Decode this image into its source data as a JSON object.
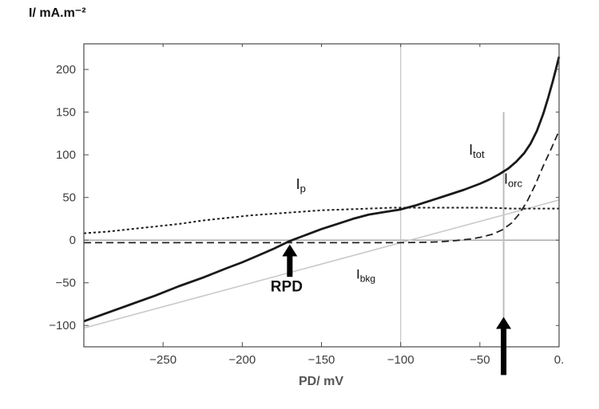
{
  "chart_data": {
    "type": "line",
    "title": "",
    "ylabel": "I/ mA.m⁻²",
    "xlabel": "PD/ mV",
    "xlim": [
      -300,
      0
    ],
    "ylim": [
      -125,
      230
    ],
    "grid": false,
    "legend": "none (inline curve labels)",
    "x_ticks": [
      {
        "v": -250,
        "label": "−250"
      },
      {
        "v": -200,
        "label": "−200"
      },
      {
        "v": -150,
        "label": "−150"
      },
      {
        "v": -100,
        "label": "−100"
      },
      {
        "v": -50,
        "label": "−50"
      },
      {
        "v": 0,
        "label": "0."
      }
    ],
    "y_ticks": [
      {
        "v": -100,
        "label": "−100"
      },
      {
        "v": -50,
        "label": "−50"
      },
      {
        "v": 0,
        "label": "0"
      },
      {
        "v": 50,
        "label": "50"
      },
      {
        "v": 100,
        "label": "100"
      },
      {
        "v": 150,
        "label": "150"
      },
      {
        "v": 200,
        "label": "200"
      }
    ],
    "series": [
      {
        "name": "I_bkg",
        "line_style": "solid",
        "dash": "none",
        "color": "#c9c9c9",
        "width": 1.6,
        "points": [
          [
            -300,
            -103
          ],
          [
            0,
            47
          ]
        ]
      },
      {
        "name": "I_p",
        "line_style": "dotted",
        "dash": "3,3",
        "color": "#1a1a1a",
        "width": 2,
        "points": [
          [
            -300,
            8
          ],
          [
            -285,
            10
          ],
          [
            -270,
            13
          ],
          [
            -255,
            16
          ],
          [
            -240,
            19
          ],
          [
            -225,
            23
          ],
          [
            -210,
            26
          ],
          [
            -195,
            29
          ],
          [
            -180,
            31
          ],
          [
            -165,
            33
          ],
          [
            -150,
            35
          ],
          [
            -135,
            36
          ],
          [
            -120,
            37
          ],
          [
            -105,
            38
          ],
          [
            -90,
            38
          ],
          [
            -75,
            38
          ],
          [
            -60,
            38
          ],
          [
            -45,
            38
          ],
          [
            -30,
            37
          ],
          [
            -15,
            37
          ],
          [
            0,
            37
          ]
        ]
      },
      {
        "name": "I_orc",
        "line_style": "dashed",
        "dash": "9,5",
        "color": "#222222",
        "width": 1.8,
        "points": [
          [
            -300,
            -3
          ],
          [
            -260,
            -3
          ],
          [
            -220,
            -3
          ],
          [
            -180,
            -3
          ],
          [
            -150,
            -3
          ],
          [
            -120,
            -3
          ],
          [
            -100,
            -3
          ],
          [
            -85,
            -2.5
          ],
          [
            -75,
            -2
          ],
          [
            -65,
            -0.5
          ],
          [
            -55,
            1.5
          ],
          [
            -48,
            4
          ],
          [
            -42,
            7
          ],
          [
            -36,
            12
          ],
          [
            -30,
            20
          ],
          [
            -25,
            31
          ],
          [
            -20,
            46
          ],
          [
            -15,
            65
          ],
          [
            -10,
            87
          ],
          [
            -5,
            107
          ],
          [
            0,
            128
          ]
        ]
      },
      {
        "name": "I_tot",
        "line_style": "solid",
        "dash": "none",
        "color": "#1a1a1a",
        "width": 2.8,
        "points": [
          [
            -300,
            -95
          ],
          [
            -285,
            -85
          ],
          [
            -270,
            -75
          ],
          [
            -255,
            -65
          ],
          [
            -240,
            -54
          ],
          [
            -225,
            -44
          ],
          [
            -210,
            -33
          ],
          [
            -200,
            -26
          ],
          [
            -190,
            -18
          ],
          [
            -180,
            -10
          ],
          [
            -170,
            -1
          ],
          [
            -160,
            6
          ],
          [
            -150,
            13
          ],
          [
            -140,
            19
          ],
          [
            -130,
            25
          ],
          [
            -120,
            30
          ],
          [
            -110,
            33
          ],
          [
            -100,
            36
          ],
          [
            -90,
            41
          ],
          [
            -80,
            47
          ],
          [
            -70,
            53
          ],
          [
            -60,
            59
          ],
          [
            -50,
            66
          ],
          [
            -44,
            71
          ],
          [
            -38,
            77
          ],
          [
            -32,
            84
          ],
          [
            -27,
            92
          ],
          [
            -22,
            102
          ],
          [
            -18,
            113
          ],
          [
            -14,
            128
          ],
          [
            -10,
            148
          ],
          [
            -7,
            166
          ],
          [
            -4,
            186
          ],
          [
            -2,
            200
          ],
          [
            0,
            215
          ]
        ]
      }
    ],
    "reference_lines": [
      {
        "orient": "h",
        "at": 0,
        "from": -300,
        "to": 0,
        "color": "#8f8f8f",
        "width": 1.2,
        "meaning": "zero-current line"
      },
      {
        "orient": "v",
        "at": -100,
        "from": -125,
        "to": 230,
        "color": "#c4c4c4",
        "width": 1.2,
        "meaning": "marker at PD = -100 mV"
      },
      {
        "orient": "v",
        "at": -35,
        "from": -133,
        "to": 150,
        "color": "#bdbdbd",
        "width": 2,
        "meaning": "marker at PD ≈ -35 mV"
      }
    ],
    "labels": [
      {
        "main": "I",
        "sub": "tot",
        "x": -52,
        "y": 100,
        "size": 18,
        "bold": false
      },
      {
        "main": "I",
        "sub": "orc",
        "x": -29,
        "y": 66,
        "size": 18,
        "bold": false
      },
      {
        "main": "I",
        "sub": "p",
        "x": -163,
        "y": 60,
        "size": 18,
        "bold": false
      },
      {
        "main": "I",
        "sub": "bkg",
        "x": -122,
        "y": -45,
        "size": 17,
        "bold": false
      },
      {
        "main": "RPD",
        "sub": "",
        "x": -172,
        "y": -60,
        "size": 19,
        "bold": true
      }
    ],
    "arrows": [
      {
        "x": -170,
        "tip_y": -5,
        "tail_y": -43,
        "meaning": "points to RPD: PD where I_tot = 0 (≈ -170 mV)"
      },
      {
        "x": -35,
        "tip_y": -90,
        "tail_y": -158,
        "meaning": "points to PD ≈ -35 mV marker"
      }
    ],
    "colors": {
      "axis": "#4a4a4a",
      "arrow": "#000000",
      "tick_text": "#3d3d3d",
      "label_text": "#111111"
    }
  }
}
